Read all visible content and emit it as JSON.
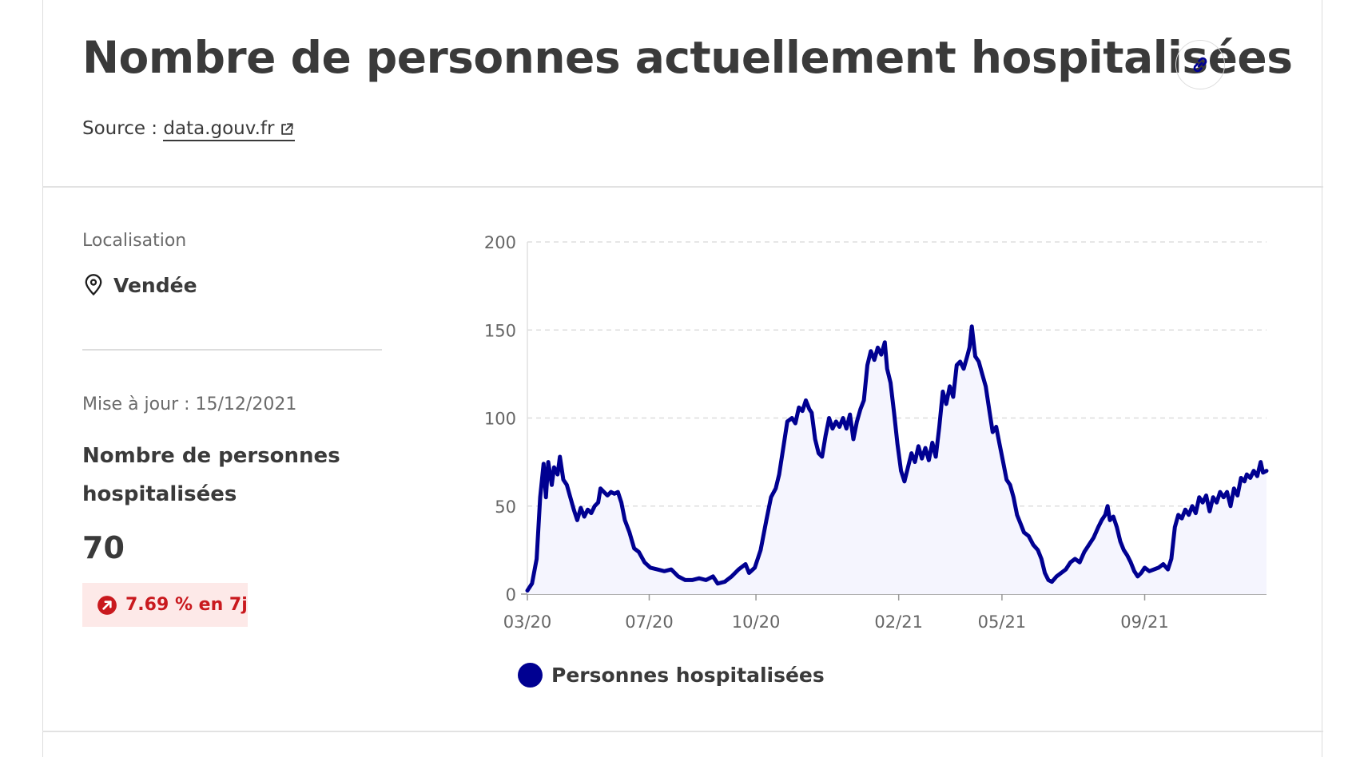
{
  "header": {
    "title": "Nombre de personnes actuellement hospitalisées",
    "source_prefix": "Source : ",
    "source_link": "data.gouv.fr"
  },
  "sidebar": {
    "location_label": "Localisation",
    "location_value": "Vendée",
    "update_label": "Mise à jour : 15/12/2021",
    "metric_label": "Nombre de personnes hospitalisées",
    "metric_value": "70",
    "trend": "7.69 % en 7j"
  },
  "colors": {
    "series": "#000091",
    "series_fill": "#f5f5fe",
    "trend": "#c9191e",
    "trend_bg": "#fde9e8",
    "grid": "#dddddd"
  },
  "icons": {
    "link": "link-icon",
    "external": "external-link-icon",
    "location": "map-pin-icon",
    "trend": "arrow-up-right-icon"
  },
  "chart_data": {
    "type": "area",
    "title": "",
    "xlabel": "",
    "ylabel": "",
    "x_ticks": [
      "03/20",
      "07/20",
      "10/20",
      "02/21",
      "05/21",
      "09/21"
    ],
    "y_ticks": [
      0,
      50,
      100,
      150,
      200
    ],
    "ylim": [
      0,
      200
    ],
    "xlim": [
      "2020-03-18",
      "2021-12-15"
    ],
    "grid": "horizontal-dashed",
    "legend_position": "bottom",
    "series": [
      {
        "name": "Personnes hospitalisées",
        "points": [
          [
            "2020-03-18",
            2
          ],
          [
            "2020-03-22",
            6
          ],
          [
            "2020-03-26",
            20
          ],
          [
            "2020-03-29",
            55
          ],
          [
            "2020-04-01",
            74
          ],
          [
            "2020-04-03",
            55
          ],
          [
            "2020-04-05",
            75
          ],
          [
            "2020-04-08",
            62
          ],
          [
            "2020-04-10",
            72
          ],
          [
            "2020-04-13",
            68
          ],
          [
            "2020-04-15",
            78
          ],
          [
            "2020-04-18",
            65
          ],
          [
            "2020-04-21",
            62
          ],
          [
            "2020-04-24",
            55
          ],
          [
            "2020-04-27",
            48
          ],
          [
            "2020-04-30",
            42
          ],
          [
            "2020-05-03",
            49
          ],
          [
            "2020-05-06",
            44
          ],
          [
            "2020-05-09",
            48
          ],
          [
            "2020-05-12",
            46
          ],
          [
            "2020-05-15",
            50
          ],
          [
            "2020-05-18",
            52
          ],
          [
            "2020-05-20",
            60
          ],
          [
            "2020-05-23",
            58
          ],
          [
            "2020-05-26",
            56
          ],
          [
            "2020-05-29",
            58
          ],
          [
            "2020-06-01",
            57
          ],
          [
            "2020-06-04",
            58
          ],
          [
            "2020-06-07",
            52
          ],
          [
            "2020-06-10",
            42
          ],
          [
            "2020-06-14",
            35
          ],
          [
            "2020-06-18",
            26
          ],
          [
            "2020-06-22",
            24
          ],
          [
            "2020-06-27",
            18
          ],
          [
            "2020-07-02",
            15
          ],
          [
            "2020-07-08",
            14
          ],
          [
            "2020-07-14",
            13
          ],
          [
            "2020-07-20",
            14
          ],
          [
            "2020-07-26",
            10
          ],
          [
            "2020-08-01",
            8
          ],
          [
            "2020-08-07",
            8
          ],
          [
            "2020-08-13",
            9
          ],
          [
            "2020-08-19",
            8
          ],
          [
            "2020-08-25",
            10
          ],
          [
            "2020-08-29",
            6
          ],
          [
            "2020-09-04",
            7
          ],
          [
            "2020-09-10",
            10
          ],
          [
            "2020-09-16",
            14
          ],
          [
            "2020-09-22",
            17
          ],
          [
            "2020-09-25",
            12
          ],
          [
            "2020-09-30",
            15
          ],
          [
            "2020-10-05",
            25
          ],
          [
            "2020-10-10",
            42
          ],
          [
            "2020-10-14",
            55
          ],
          [
            "2020-10-18",
            60
          ],
          [
            "2020-10-21",
            68
          ],
          [
            "2020-10-25",
            85
          ],
          [
            "2020-10-28",
            98
          ],
          [
            "2020-11-01",
            100
          ],
          [
            "2020-11-04",
            97
          ],
          [
            "2020-11-07",
            106
          ],
          [
            "2020-11-10",
            104
          ],
          [
            "2020-11-13",
            110
          ],
          [
            "2020-11-16",
            105
          ],
          [
            "2020-11-18",
            103
          ],
          [
            "2020-11-21",
            88
          ],
          [
            "2020-11-24",
            80
          ],
          [
            "2020-11-27",
            78
          ],
          [
            "2020-11-30",
            90
          ],
          [
            "2020-12-03",
            100
          ],
          [
            "2020-12-06",
            94
          ],
          [
            "2020-12-09",
            98
          ],
          [
            "2020-12-12",
            95
          ],
          [
            "2020-12-15",
            100
          ],
          [
            "2020-12-18",
            94
          ],
          [
            "2020-12-21",
            102
          ],
          [
            "2020-12-24",
            88
          ],
          [
            "2020-12-27",
            98
          ],
          [
            "2020-12-30",
            105
          ],
          [
            "2021-01-02",
            110
          ],
          [
            "2021-01-05",
            130
          ],
          [
            "2021-01-08",
            138
          ],
          [
            "2021-01-11",
            133
          ],
          [
            "2021-01-14",
            140
          ],
          [
            "2021-01-17",
            136
          ],
          [
            "2021-01-20",
            143
          ],
          [
            "2021-01-22",
            128
          ],
          [
            "2021-01-25",
            120
          ],
          [
            "2021-01-28",
            103
          ],
          [
            "2021-01-31",
            85
          ],
          [
            "2021-02-03",
            70
          ],
          [
            "2021-02-06",
            64
          ],
          [
            "2021-02-09",
            72
          ],
          [
            "2021-02-12",
            80
          ],
          [
            "2021-02-15",
            75
          ],
          [
            "2021-02-18",
            84
          ],
          [
            "2021-02-21",
            77
          ],
          [
            "2021-02-24",
            83
          ],
          [
            "2021-02-27",
            76
          ],
          [
            "2021-03-02",
            86
          ],
          [
            "2021-03-05",
            78
          ],
          [
            "2021-03-08",
            95
          ],
          [
            "2021-03-11",
            115
          ],
          [
            "2021-03-14",
            108
          ],
          [
            "2021-03-17",
            118
          ],
          [
            "2021-03-20",
            112
          ],
          [
            "2021-03-23",
            130
          ],
          [
            "2021-03-26",
            132
          ],
          [
            "2021-03-29",
            128
          ],
          [
            "2021-04-01",
            135
          ],
          [
            "2021-04-03",
            140
          ],
          [
            "2021-04-05",
            152
          ],
          [
            "2021-04-08",
            135
          ],
          [
            "2021-04-11",
            132
          ],
          [
            "2021-04-14",
            125
          ],
          [
            "2021-04-17",
            118
          ],
          [
            "2021-04-20",
            105
          ],
          [
            "2021-04-23",
            92
          ],
          [
            "2021-04-26",
            95
          ],
          [
            "2021-04-29",
            85
          ],
          [
            "2021-05-02",
            75
          ],
          [
            "2021-05-05",
            65
          ],
          [
            "2021-05-08",
            62
          ],
          [
            "2021-05-11",
            55
          ],
          [
            "2021-05-14",
            45
          ],
          [
            "2021-05-17",
            40
          ],
          [
            "2021-05-20",
            35
          ],
          [
            "2021-05-24",
            33
          ],
          [
            "2021-05-28",
            28
          ],
          [
            "2021-06-01",
            25
          ],
          [
            "2021-06-04",
            20
          ],
          [
            "2021-06-07",
            12
          ],
          [
            "2021-06-10",
            8
          ],
          [
            "2021-06-13",
            7
          ],
          [
            "2021-06-17",
            10
          ],
          [
            "2021-06-21",
            12
          ],
          [
            "2021-06-25",
            14
          ],
          [
            "2021-06-29",
            18
          ],
          [
            "2021-07-03",
            20
          ],
          [
            "2021-07-07",
            18
          ],
          [
            "2021-07-11",
            24
          ],
          [
            "2021-07-15",
            28
          ],
          [
            "2021-07-19",
            32
          ],
          [
            "2021-07-23",
            38
          ],
          [
            "2021-07-26",
            42
          ],
          [
            "2021-07-29",
            45
          ],
          [
            "2021-07-31",
            50
          ],
          [
            "2021-08-02",
            42
          ],
          [
            "2021-08-05",
            44
          ],
          [
            "2021-08-08",
            38
          ],
          [
            "2021-08-11",
            30
          ],
          [
            "2021-08-14",
            25
          ],
          [
            "2021-08-17",
            22
          ],
          [
            "2021-08-20",
            18
          ],
          [
            "2021-08-23",
            13
          ],
          [
            "2021-08-26",
            10
          ],
          [
            "2021-08-29",
            12
          ],
          [
            "2021-09-01",
            15
          ],
          [
            "2021-09-05",
            13
          ],
          [
            "2021-09-09",
            14
          ],
          [
            "2021-09-13",
            15
          ],
          [
            "2021-09-17",
            17
          ],
          [
            "2021-09-21",
            14
          ],
          [
            "2021-09-24",
            20
          ],
          [
            "2021-09-27",
            38
          ],
          [
            "2021-09-30",
            45
          ],
          [
            "2021-10-03",
            43
          ],
          [
            "2021-10-06",
            48
          ],
          [
            "2021-10-09",
            45
          ],
          [
            "2021-10-12",
            50
          ],
          [
            "2021-10-15",
            46
          ],
          [
            "2021-10-18",
            55
          ],
          [
            "2021-10-21",
            52
          ],
          [
            "2021-10-24",
            56
          ],
          [
            "2021-10-27",
            47
          ],
          [
            "2021-10-30",
            55
          ],
          [
            "2021-11-02",
            52
          ],
          [
            "2021-11-05",
            58
          ],
          [
            "2021-11-08",
            55
          ],
          [
            "2021-11-11",
            58
          ],
          [
            "2021-11-14",
            50
          ],
          [
            "2021-11-17",
            60
          ],
          [
            "2021-11-20",
            56
          ],
          [
            "2021-11-23",
            66
          ],
          [
            "2021-11-26",
            64
          ],
          [
            "2021-11-28",
            68
          ],
          [
            "2021-12-01",
            66
          ],
          [
            "2021-12-04",
            70
          ],
          [
            "2021-12-07",
            67
          ],
          [
            "2021-12-10",
            75
          ],
          [
            "2021-12-12",
            69
          ],
          [
            "2021-12-15",
            70
          ]
        ]
      }
    ]
  }
}
